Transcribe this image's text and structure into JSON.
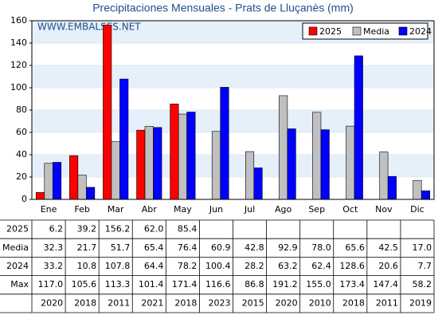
{
  "chart_data": {
    "type": "bar",
    "title": "Precipitaciones Mensuales - Prats de Lluçanès (mm)",
    "watermark": "WWW.EMBALSES.NET",
    "categories": [
      "Ene",
      "Feb",
      "Mar",
      "Abr",
      "May",
      "Jun",
      "Jul",
      "Ago",
      "Sep",
      "Oct",
      "Nov",
      "Dic"
    ],
    "series": [
      {
        "name": "2025",
        "color": "#ff0000",
        "values": [
          6.2,
          39.2,
          156.2,
          62.0,
          85.4,
          null,
          null,
          null,
          null,
          null,
          null,
          null
        ],
        "value_labels": [
          "6.2",
          "39.2",
          "156.2",
          "62.0",
          "85.4",
          null,
          null,
          null,
          null,
          null,
          null,
          null
        ]
      },
      {
        "name": "Media",
        "color": "#c0c0c0",
        "values": [
          32.3,
          21.7,
          51.7,
          65.4,
          76.4,
          60.9,
          42.8,
          92.9,
          78.0,
          65.6,
          42.5,
          17.0
        ],
        "value_labels": [
          "32.3",
          "21.7",
          "51.7",
          "65.4",
          "76.4",
          "60.9",
          "42.8",
          "92.9",
          "78.0",
          "65.6",
          "42.5",
          "17.0"
        ]
      },
      {
        "name": "2024",
        "color": "#0000ff",
        "values": [
          33.2,
          10.8,
          107.8,
          64.4,
          78.2,
          100.4,
          28.2,
          63.2,
          62.4,
          128.6,
          20.6,
          7.7
        ],
        "value_labels": [
          "33.2",
          "10.8",
          "107.8",
          "64.4",
          "78.2",
          "100.4",
          "28.2",
          "63.2",
          "62.4",
          "128.6",
          "20.6",
          "7.7"
        ]
      }
    ],
    "ylim": [
      0,
      160
    ],
    "yticks": [
      0,
      20,
      40,
      60,
      80,
      100,
      120,
      140,
      160
    ],
    "grid": true,
    "legend": "top-right"
  },
  "table": {
    "max_label": "Max",
    "max": [
      "117.0",
      "105.6",
      "113.3",
      "101.4",
      "171.4",
      "116.6",
      "86.8",
      "191.2",
      "155.0",
      "173.4",
      "147.4",
      "58.2"
    ],
    "max_years": [
      2020,
      2018,
      2011,
      2021,
      2018,
      2023,
      2015,
      2020,
      2010,
      2018,
      2011,
      2019
    ]
  }
}
